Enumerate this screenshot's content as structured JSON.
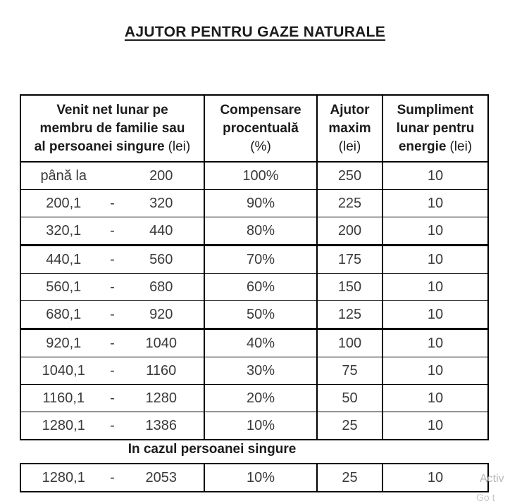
{
  "title": "AJUTOR PENTRU GAZE NATURALE",
  "table": {
    "header": {
      "col1": {
        "line1": "Venit net lunar pe",
        "line2": "membru de familie sau",
        "line3_bold": "al persoanei singure",
        "line3_normal": "(lei)"
      },
      "col2": {
        "line1": "Compensare",
        "line2": "procentuală",
        "line3_normal": "(%)"
      },
      "col3": {
        "line1": "Ajutor",
        "line2": "maxim",
        "line3_normal": "(lei)"
      },
      "col4": {
        "line1": "Sumpliment",
        "line2": "lunar pentru",
        "line3_bold": "energie",
        "line3_normal": "(lei)"
      }
    },
    "rows": [
      {
        "from": "până la",
        "dash": "",
        "to": "200",
        "percent": "100%",
        "max_aid": "250",
        "supplement": "10"
      },
      {
        "from": "200,1",
        "dash": "-",
        "to": "320",
        "percent": "90%",
        "max_aid": "225",
        "supplement": "10"
      },
      {
        "from": "320,1",
        "dash": "-",
        "to": "440",
        "percent": "80%",
        "max_aid": "200",
        "supplement": "10"
      },
      {
        "from": "440,1",
        "dash": "-",
        "to": "560",
        "percent": "70%",
        "max_aid": "175",
        "supplement": "10"
      },
      {
        "from": "560,1",
        "dash": "-",
        "to": "680",
        "percent": "60%",
        "max_aid": "150",
        "supplement": "10"
      },
      {
        "from": "680,1",
        "dash": "-",
        "to": "920",
        "percent": "50%",
        "max_aid": "125",
        "supplement": "10"
      },
      {
        "from": "920,1",
        "dash": "-",
        "to": "1040",
        "percent": "40%",
        "max_aid": "100",
        "supplement": "10"
      },
      {
        "from": "1040,1",
        "dash": "-",
        "to": "1160",
        "percent": "30%",
        "max_aid": "75",
        "supplement": "10"
      },
      {
        "from": "1160,1",
        "dash": "-",
        "to": "1280",
        "percent": "20%",
        "max_aid": "50",
        "supplement": "10"
      },
      {
        "from": "1280,1",
        "dash": "-",
        "to": "1386",
        "percent": "10%",
        "max_aid": "25",
        "supplement": "10"
      }
    ]
  },
  "single_section": {
    "heading": "In cazul persoanei singure",
    "row": {
      "from": "1280,1",
      "dash": "-",
      "to": "2053",
      "percent": "10%",
      "max_aid": "25",
      "supplement": "10"
    }
  },
  "watermark": {
    "line1": "Activ",
    "line2": "Go t"
  },
  "colors": {
    "border": "#000000",
    "data_text": "#3a3a3a",
    "heading_text": "#1b1b1b",
    "watermark": "#b9b9b9"
  }
}
